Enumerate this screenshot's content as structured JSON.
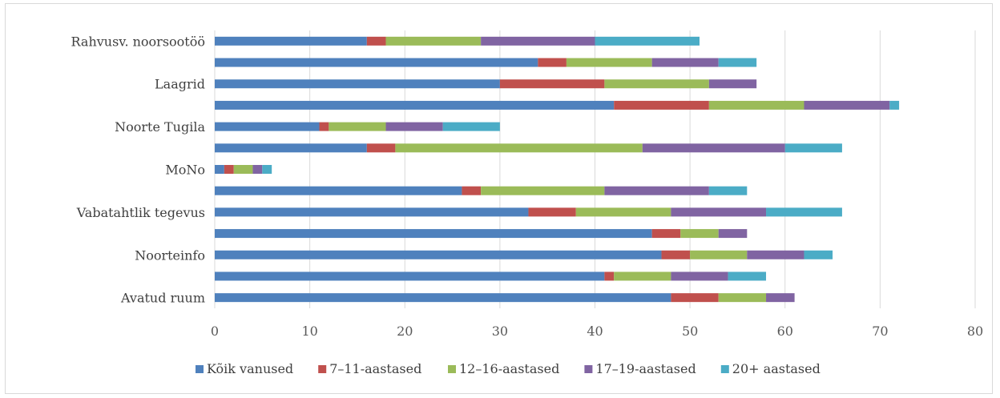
{
  "chart_data": {
    "type": "bar",
    "orientation": "horizontal",
    "stacked": true,
    "categories": [
      "Rahvusv. noorsootöö",
      "",
      "Laagrid",
      "",
      "Noorte Tugila",
      "",
      "MoNo",
      "",
      "Vabatahtlik tegevus",
      "",
      "Noorteinfo",
      "",
      "Avatud ruum"
    ],
    "series": [
      {
        "name": "Kõik vanused",
        "color": "#4f81bd",
        "values": [
          16,
          34,
          30,
          42,
          11,
          16,
          1,
          26,
          33,
          46,
          47,
          41,
          48
        ]
      },
      {
        "name": "7–11-aastased",
        "color": "#c0504d",
        "values": [
          2,
          3,
          11,
          10,
          1,
          3,
          1,
          2,
          5,
          3,
          3,
          1,
          5
        ]
      },
      {
        "name": "12–16-aastased",
        "color": "#9bbb59",
        "values": [
          10,
          9,
          11,
          10,
          6,
          26,
          2,
          13,
          10,
          4,
          6,
          6,
          5
        ]
      },
      {
        "name": "17–19-aastased",
        "color": "#8064a2",
        "values": [
          12,
          7,
          5,
          9,
          6,
          15,
          1,
          11,
          10,
          3,
          6,
          6,
          3
        ]
      },
      {
        "name": "20+ aastased",
        "color": "#4bacc6",
        "values": [
          11,
          4,
          0,
          1,
          6,
          6,
          1,
          4,
          8,
          0,
          3,
          4,
          0
        ]
      }
    ],
    "xlim": [
      0,
      80
    ],
    "xticks": [
      0,
      10,
      20,
      30,
      40,
      50,
      60,
      70,
      80
    ],
    "xtick_labels": [
      "0",
      "10",
      "20",
      "30",
      "40",
      "50",
      "60",
      "70",
      "80"
    ],
    "grid": true,
    "legend_position": "bottom",
    "title": "",
    "xlabel": "",
    "ylabel": ""
  }
}
